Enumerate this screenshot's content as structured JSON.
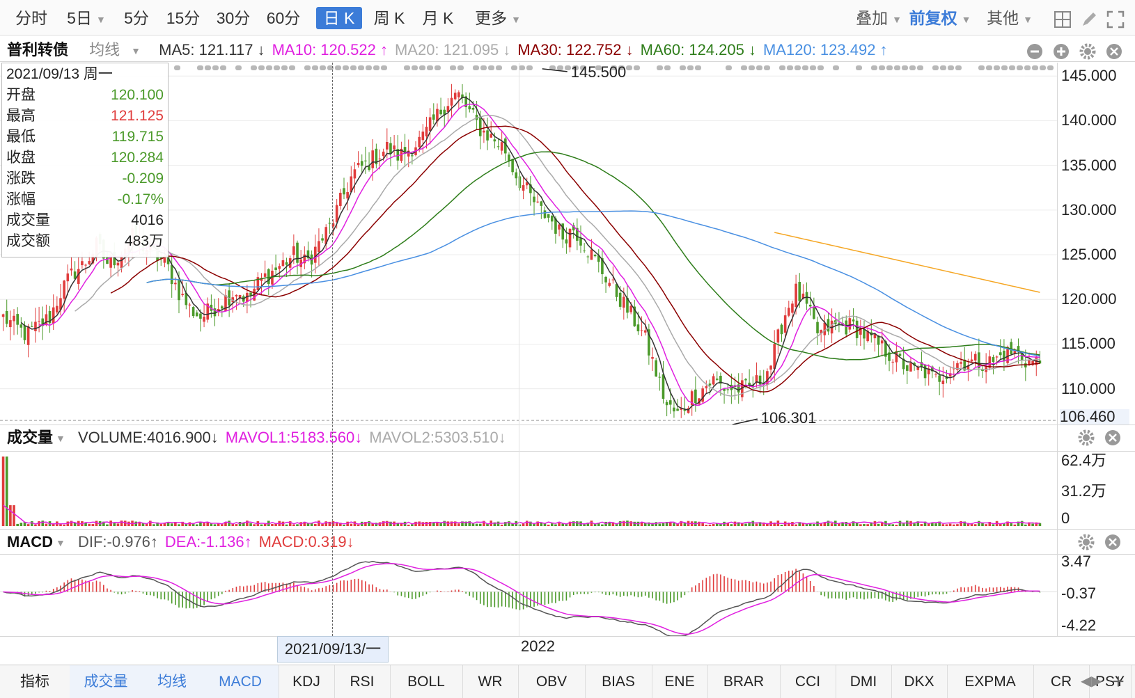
{
  "toolbar": {
    "periods": [
      {
        "label": "分时",
        "active": false
      },
      {
        "label": "5日",
        "active": false,
        "dropdown": true
      },
      {
        "label": "5分",
        "active": false
      },
      {
        "label": "15分",
        "active": false
      },
      {
        "label": "30分",
        "active": false
      },
      {
        "label": "60分",
        "active": false
      },
      {
        "label": "日 K",
        "active": true
      },
      {
        "label": "周 K",
        "active": false
      },
      {
        "label": "月 K",
        "active": false
      },
      {
        "label": "更多",
        "active": false,
        "dropdown": true
      }
    ],
    "overlay_label": "叠加",
    "adjust_label": "前复权",
    "other_label": "其他",
    "icons": [
      "grid-icon",
      "draw-icon",
      "fullscreen-icon"
    ]
  },
  "main_panel": {
    "name": "普利转债",
    "ma_mode": "均线",
    "indicators": [
      {
        "label": "MA5: 121.117 ↓",
        "color": "#333333"
      },
      {
        "label": "MA10: 120.522 ↑",
        "color": "#e020e0"
      },
      {
        "label": "MA20: 121.095 ↓",
        "color": "#aaaaaa"
      },
      {
        "label": "MA30: 122.752 ↓",
        "color": "#8b0000"
      },
      {
        "label": "MA60: 124.205 ↓",
        "color": "#2e7d1a"
      },
      {
        "label": "MA120: 123.492 ↑",
        "color": "#4a90e2"
      }
    ],
    "y_ticks": [
      "145.000",
      "140.000",
      "135.000",
      "130.000",
      "125.000",
      "120.000",
      "115.000",
      "110.000"
    ],
    "y_min_label": "106.460",
    "high_annotation": "145.500",
    "low_annotation": "106.301"
  },
  "infobox": {
    "date": "2021/09/13 周一",
    "rows": [
      {
        "k": "开盘",
        "v": "120.100",
        "color": "#4b9a2a"
      },
      {
        "k": "最高",
        "v": "121.125",
        "color": "#e03c3c"
      },
      {
        "k": "最低",
        "v": "119.715",
        "color": "#4b9a2a"
      },
      {
        "k": "收盘",
        "v": "120.284",
        "color": "#4b9a2a"
      },
      {
        "k": "涨跌",
        "v": "-0.209",
        "color": "#4b9a2a"
      },
      {
        "k": "涨幅",
        "v": "-0.17%",
        "color": "#4b9a2a"
      },
      {
        "k": "成交量",
        "v": "4016",
        "color": "#222222"
      },
      {
        "k": "成交额",
        "v": "483万",
        "color": "#222222"
      }
    ]
  },
  "volume_panel": {
    "title": "成交量",
    "indicators": [
      {
        "label": "VOLUME:4016.900↓",
        "color": "#333333"
      },
      {
        "label": "MAVOL1:5183.560↓",
        "color": "#e020e0"
      },
      {
        "label": "MAVOL2:5303.510↓",
        "color": "#aaaaaa"
      }
    ],
    "y_ticks": [
      "62.4万",
      "31.2万",
      "0"
    ]
  },
  "macd_panel": {
    "title": "MACD",
    "indicators": [
      {
        "label": "DIF:-0.976↑",
        "color": "#555555"
      },
      {
        "label": "DEA:-1.136↑",
        "color": "#e020e0"
      },
      {
        "label": "MACD:0.319↓",
        "color": "#e03c3c"
      }
    ],
    "y_ticks": [
      "3.47",
      "-0.37",
      "-4.22"
    ]
  },
  "x_axis": {
    "crosshair_label": "2021/09/13/一",
    "year_label": "2022"
  },
  "tabs": {
    "label": "指标",
    "items": [
      {
        "label": "成交量",
        "blue": true
      },
      {
        "label": "均线",
        "blue": true
      },
      {
        "label": "MACD",
        "blue": true
      },
      {
        "label": "KDJ",
        "blue": false
      },
      {
        "label": "RSI",
        "blue": false
      },
      {
        "label": "BOLL",
        "blue": false
      },
      {
        "label": "WR",
        "blue": false
      },
      {
        "label": "OBV",
        "blue": false
      },
      {
        "label": "BIAS",
        "blue": false
      },
      {
        "label": "ENE",
        "blue": false
      },
      {
        "label": "BRAR",
        "blue": false
      },
      {
        "label": "CCI",
        "blue": false
      },
      {
        "label": "DMI",
        "blue": false
      },
      {
        "label": "DKX",
        "blue": false
      },
      {
        "label": "EXPMA",
        "blue": false
      },
      {
        "label": "CR",
        "blue": false
      },
      {
        "label": "PSY",
        "blue": false
      }
    ]
  },
  "chart_data": {
    "type": "candlestick",
    "y_range": [
      106.0,
      146.5
    ],
    "close_series_approx": [
      118,
      117,
      116,
      117,
      118,
      121,
      123,
      124,
      126,
      124,
      125,
      127,
      126,
      125,
      124,
      121,
      119,
      118,
      119,
      120,
      121,
      120,
      122,
      123,
      124,
      125,
      124,
      126,
      128,
      131,
      134,
      135,
      136,
      137,
      136,
      137,
      138,
      140,
      142,
      143,
      141,
      139,
      138,
      137,
      134,
      132,
      130,
      129,
      127,
      128,
      126,
      124,
      122,
      120,
      118,
      116,
      112,
      108,
      107,
      109,
      110,
      111,
      110,
      110,
      110,
      111,
      113,
      118,
      121,
      119,
      116,
      117,
      117,
      117,
      116,
      115,
      114,
      113,
      112,
      112,
      111,
      112,
      113,
      113,
      113,
      113,
      114,
      114,
      113,
      113
    ]
  }
}
